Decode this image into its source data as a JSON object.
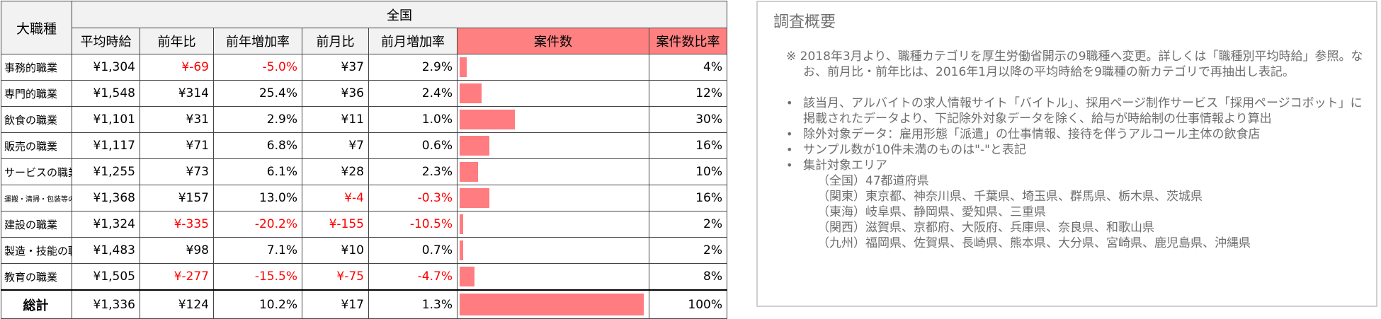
{
  "table": {
    "corner_label": "大職種",
    "region_label": "全国",
    "columns": [
      "平均時給",
      "前年比",
      "前年増加率",
      "前月比",
      "前月増加率",
      "案件数",
      "案件数比率"
    ],
    "rows": [
      {
        "category": "事務的職業",
        "avg": "¥1,304",
        "yoy": "¥-69",
        "yoy_rate": "-5.0%",
        "mom": "¥37",
        "mom_rate": "2.9%",
        "jobs_share": 4,
        "ratio": "4%"
      },
      {
        "category": "専門的職業",
        "avg": "¥1,548",
        "yoy": "¥314",
        "yoy_rate": "25.4%",
        "mom": "¥36",
        "mom_rate": "2.4%",
        "jobs_share": 12,
        "ratio": "12%"
      },
      {
        "category": "飲食の職業",
        "avg": "¥1,101",
        "yoy": "¥31",
        "yoy_rate": "2.9%",
        "mom": "¥11",
        "mom_rate": "1.0%",
        "jobs_share": 30,
        "ratio": "30%"
      },
      {
        "category": "販売の職業",
        "avg": "¥1,117",
        "yoy": "¥71",
        "yoy_rate": "6.8%",
        "mom": "¥7",
        "mom_rate": "0.6%",
        "jobs_share": 16,
        "ratio": "16%"
      },
      {
        "category": "サービスの職業",
        "avg": "¥1,255",
        "yoy": "¥73",
        "yoy_rate": "6.1%",
        "mom": "¥28",
        "mom_rate": "2.3%",
        "jobs_share": 10,
        "ratio": "10%"
      },
      {
        "category": "運搬・清掃・包装等の職業",
        "avg": "¥1,368",
        "yoy": "¥157",
        "yoy_rate": "13.0%",
        "mom": "¥-4",
        "mom_rate": "-0.3%",
        "jobs_share": 16,
        "ratio": "16%"
      },
      {
        "category": "建設の職業",
        "avg": "¥1,324",
        "yoy": "¥-335",
        "yoy_rate": "-20.2%",
        "mom": "¥-155",
        "mom_rate": "-10.5%",
        "jobs_share": 2,
        "ratio": "2%"
      },
      {
        "category": "製造・技能の職業",
        "avg": "¥1,483",
        "yoy": "¥98",
        "yoy_rate": "7.1%",
        "mom": "¥10",
        "mom_rate": "0.7%",
        "jobs_share": 2,
        "ratio": "2%"
      },
      {
        "category": "教育の職業",
        "avg": "¥1,505",
        "yoy": "¥-277",
        "yoy_rate": "-15.5%",
        "mom": "¥-75",
        "mom_rate": "-4.7%",
        "jobs_share": 8,
        "ratio": "8%"
      }
    ],
    "total": {
      "category": "総計",
      "avg": "¥1,336",
      "yoy": "¥124",
      "yoy_rate": "10.2%",
      "mom": "¥17",
      "mom_rate": "1.3%",
      "jobs_share": 100,
      "ratio": "100%"
    },
    "bar_color": "#ff7c80",
    "negative_color": "#ff0000"
  },
  "notes": {
    "title": "調査概要",
    "main": "※ 2018年3月より、職種カテゴリを厚生労働省開示の9職種へ変更。詳しくは「職種別平均時給」参照。なお、前月比・前年比は、2016年1月以降の平均時給を9職種の新カテゴリで再抽出し表記。",
    "bullets": [
      "該当月、アルバイトの求人情報サイト「バイトル」、採用ページ制作サービス「採用ページコボット」に掲載されたデータより、下記除外対象データを除く、給与が時給制の仕事情報より算出",
      "除外対象データ：雇用形態「派遣」の仕事情報、接待を伴うアルコール主体の飲食店",
      "サンプル数が10件未満のものは\"-\"と表記",
      "集計対象エリア"
    ],
    "areas": [
      "（全国）47都道府県",
      "（関東）東京都、神奈川県、千葉県、埼玉県、群馬県、栃木県、茨城県",
      "（東海）岐阜県、静岡県、愛知県、三重県",
      "（関西）滋賀県、京都府、大阪府、兵庫県、奈良県、和歌山県",
      "（九州）福岡県、佐賀県、長崎県、熊本県、大分県、宮崎県、鹿児島県、沖縄県"
    ]
  }
}
